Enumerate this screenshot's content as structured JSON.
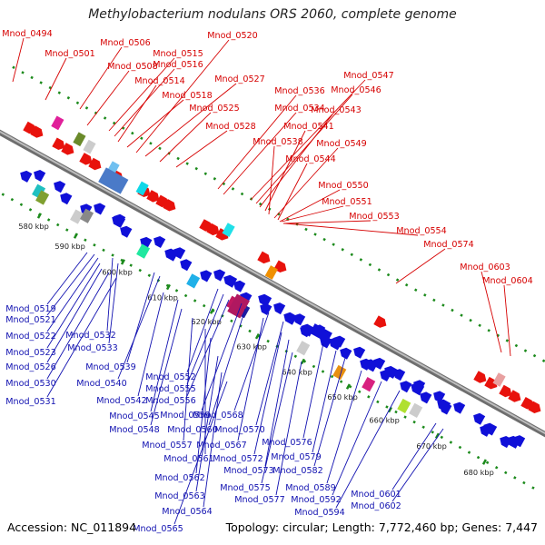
{
  "title": "Methylobacterium nodulans ORS 2060, complete genome",
  "footer": {
    "accession": "Accession: NC_011894",
    "summary": "Topology: circular; Length: 7,772,460 bp; Genes: 7,447"
  },
  "colors": {
    "forward": "#e8120c",
    "reverse": "#1010d8",
    "forward_label": "#d60000",
    "reverse_label": "#1010b0",
    "backbone": "#8a8a8a",
    "dots": "#1c8a1c"
  },
  "ticks": [
    "580 kbp",
    "590 kbp",
    "600 kbp",
    "610 kbp",
    "620 kbp",
    "630 kbp",
    "640 kbp",
    "650 kbp",
    "660 kbp",
    "670 kbp",
    "680 kbp"
  ],
  "forward_labels": [
    "Mnod_0494",
    "Mnod_0501",
    "Mnod_0506",
    "Mnod_0508",
    "Mnod_0515",
    "Mnod_0516",
    "Mnod_0514",
    "Mnod_0518",
    "Mnod_0520",
    "Mnod_0527",
    "Mnod_0525",
    "Mnod_0528",
    "Mnod_0536",
    "Mnod_0534",
    "Mnod_0547",
    "Mnod_0546",
    "Mnod_0543",
    "Mnod_0541",
    "Mnod_0538",
    "Mnod_0549",
    "Mnod_0544",
    "Mnod_0550",
    "Mnod_0551",
    "Mnod_0553",
    "Mnod_0554",
    "Mnod_0574",
    "Mnod_0603",
    "Mnod_0604"
  ],
  "reverse_labels": [
    "Mnod_0519",
    "Mnod_0521",
    "Mnod_0522",
    "Mnod_0532",
    "Mnod_0523",
    "Mnod_0533",
    "Mnod_0526",
    "Mnod_0539",
    "Mnod_0530",
    "Mnod_0540",
    "Mnod_0531",
    "Mnod_0552",
    "Mnod_0555",
    "Mnod_0542",
    "Mnod_0556",
    "Mnod_0545",
    "Mnod_0559",
    "Mnod_0568",
    "Mnod_0548",
    "Mnod_0560",
    "Mnod_0570",
    "Mnod_0557",
    "Mnod_0567",
    "Mnod_0576",
    "Mnod_0561",
    "Mnod_0572",
    "Mnod_0579",
    "Mnod_0562",
    "Mnod_0573",
    "Mnod_0582",
    "Mnod_0575",
    "Mnod_0589",
    "Mnod_0563",
    "Mnod_0577",
    "Mnod_0592",
    "Mnod_0601",
    "Mnod_0564",
    "Mnod_0594",
    "Mnod_0602",
    "Mnod_0565"
  ]
}
